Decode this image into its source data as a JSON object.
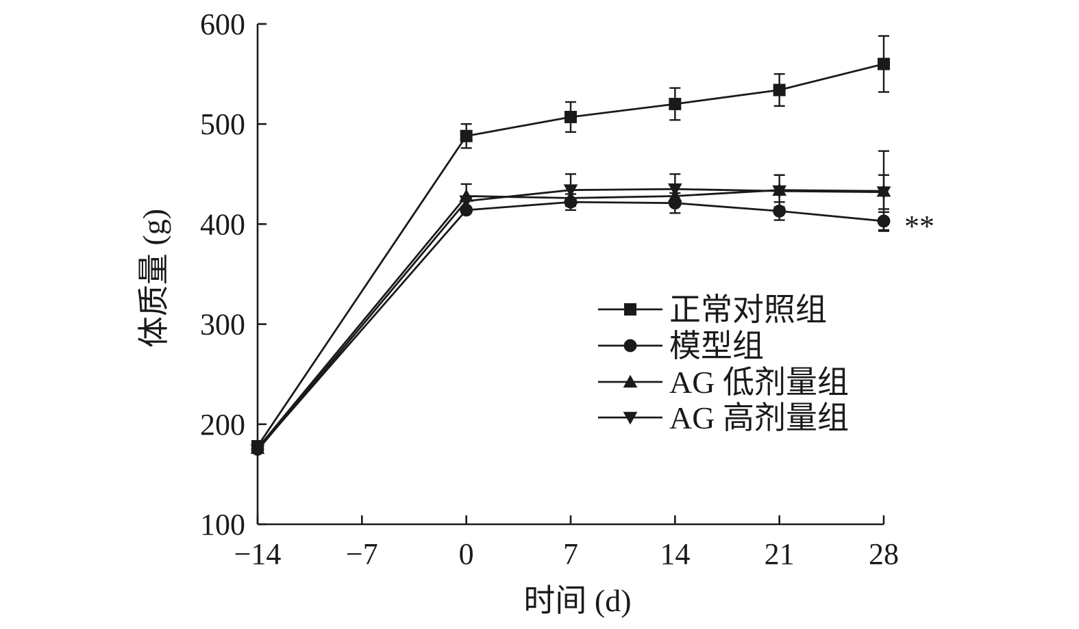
{
  "chart_data": {
    "type": "line",
    "xlabel": "时间 (d)",
    "ylabel": "体质量 (g)",
    "x": [
      -14,
      -7,
      0,
      7,
      14,
      21,
      28
    ],
    "x_ticks": [
      -14,
      -7,
      0,
      7,
      14,
      21,
      28
    ],
    "x_tick_labels": [
      "−14",
      "−7",
      "0",
      "7",
      "14",
      "21",
      "28"
    ],
    "xlim": [
      -14,
      28
    ],
    "ylim": [
      100,
      600
    ],
    "y_ticks": [
      100,
      200,
      300,
      400,
      500,
      600
    ],
    "y_tick_labels": [
      "100",
      "200",
      "300",
      "400",
      "500",
      "600"
    ],
    "grid": false,
    "legend_position": "center-right",
    "series": [
      {
        "name": "正常对照组",
        "marker": "square",
        "x": [
          -14,
          0,
          7,
          14,
          21,
          28
        ],
        "y": [
          178,
          488,
          507,
          520,
          534,
          560
        ],
        "error": [
          null,
          12,
          15,
          16,
          16,
          28
        ]
      },
      {
        "name": "模型组",
        "marker": "circle",
        "x": [
          -14,
          0,
          7,
          14,
          21,
          28
        ],
        "y": [
          175,
          414,
          422,
          421,
          413,
          403
        ],
        "error": [
          null,
          null,
          8,
          10,
          9,
          9
        ]
      },
      {
        "name": "AG 低剂量组",
        "marker": "triangle-up",
        "x": [
          -14,
          0,
          7,
          14,
          21,
          28
        ],
        "y": [
          176,
          428,
          426,
          428,
          434,
          433
        ],
        "error": [
          null,
          12,
          null,
          null,
          null,
          40
        ]
      },
      {
        "name": "AG 高剂量组",
        "marker": "triangle-down",
        "x": [
          -14,
          0,
          7,
          14,
          21,
          28
        ],
        "y": [
          174,
          423,
          434,
          435,
          433,
          432
        ],
        "error": [
          null,
          null,
          16,
          15,
          16,
          17
        ]
      }
    ],
    "annotations": [
      {
        "text": "**",
        "x": 28,
        "y": 403
      }
    ]
  }
}
